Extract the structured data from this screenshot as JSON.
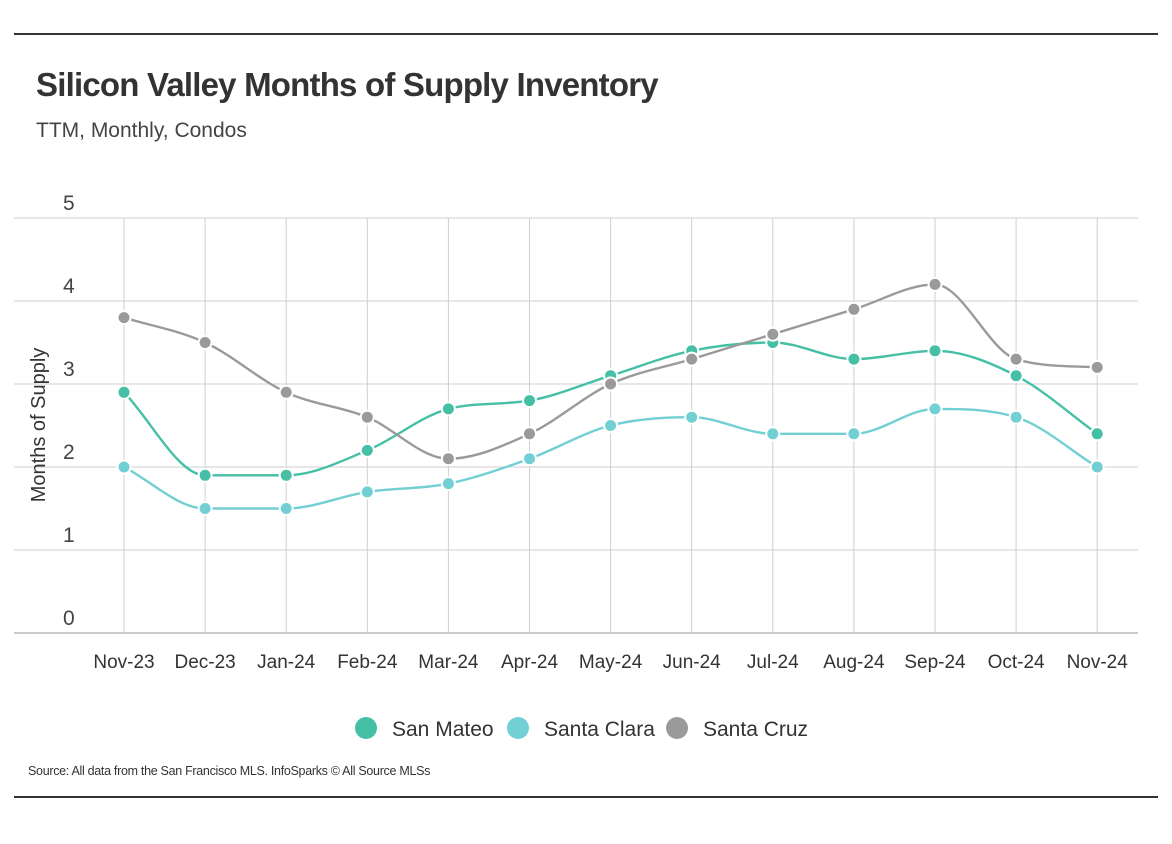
{
  "header": {
    "title": "Silicon Valley Months of Supply Inventory",
    "subtitle": "TTM, Monthly, Condos"
  },
  "footer": {
    "source": "Source:  All data from the San Francisco MLS. InfoSparks © All Source MLSs"
  },
  "chart_data": {
    "type": "line",
    "title": "Silicon Valley Months of Supply Inventory",
    "subtitle": "TTM, Monthly, Condos",
    "xlabel": "",
    "ylabel": "Months of Supply",
    "ylim": [
      0,
      5
    ],
    "yticks": [
      0,
      1,
      2,
      3,
      4,
      5
    ],
    "grid": true,
    "legend_position": "bottom",
    "smooth": true,
    "categories": [
      "Nov-23",
      "Dec-23",
      "Jan-24",
      "Feb-24",
      "Mar-24",
      "Apr-24",
      "May-24",
      "Jun-24",
      "Jul-24",
      "Aug-24",
      "Sep-24",
      "Oct-24",
      "Nov-24"
    ],
    "series": [
      {
        "name": "San Mateo",
        "color": "#45bfa6",
        "values": [
          2.9,
          1.9,
          1.9,
          2.2,
          2.7,
          2.8,
          3.1,
          3.4,
          3.5,
          3.3,
          3.4,
          3.1,
          2.4
        ]
      },
      {
        "name": "Santa Clara",
        "color": "#72cfd4",
        "values": [
          2.0,
          1.5,
          1.5,
          1.7,
          1.8,
          2.1,
          2.5,
          2.6,
          2.4,
          2.4,
          2.7,
          2.6,
          2.0
        ]
      },
      {
        "name": "Santa Cruz",
        "color": "#9a9a9a",
        "values": [
          3.8,
          3.5,
          2.9,
          2.6,
          2.1,
          2.4,
          3.0,
          3.3,
          3.6,
          3.9,
          4.2,
          3.3,
          3.2
        ]
      }
    ]
  }
}
